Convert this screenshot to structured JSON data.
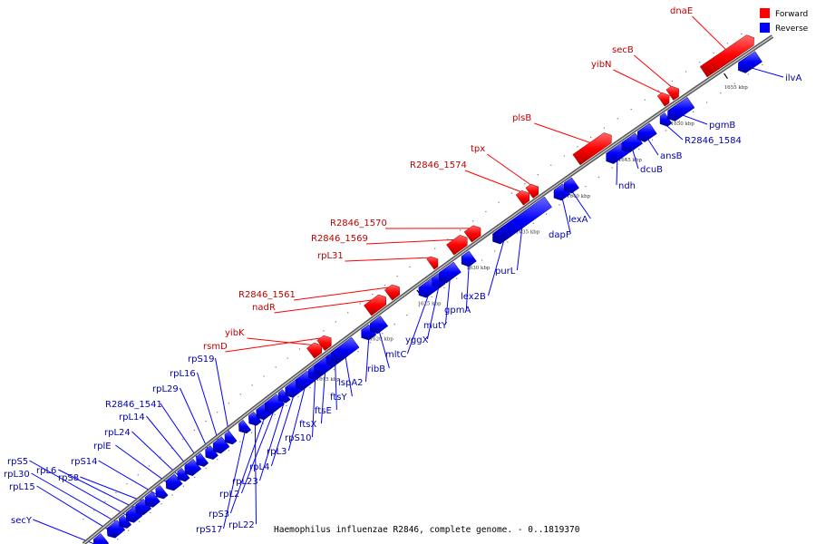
{
  "caption": "Haemophilus influenzae R2846, complete genome. - 0..1819370",
  "legend": {
    "forward": "Forward",
    "reverse": "Reverse"
  },
  "colors": {
    "forward": "#ff0000",
    "reverse": "#0000ff",
    "backbone": "#6b6b6b",
    "label_forward": "#c00000",
    "label_reverse": "#0000b0"
  },
  "ticks": [
    "1615 kbp",
    "1620 kbp",
    "1625 kbp",
    "1630 kbp",
    "1635 kbp",
    "1640 kbp",
    "1645 kbp",
    "1650 kbp",
    "1655 kbp"
  ],
  "forward_genes": [
    "yibK",
    "rsmD",
    "nadR",
    "R2846_1561",
    "rpL31",
    "R2846_1569",
    "R2846_1570",
    "R2846_1574",
    "tpx",
    "plsB",
    "yibN",
    "secB",
    "dnaE"
  ],
  "reverse_genes": [
    "secY",
    "rpL15",
    "rpL30",
    "rpS5",
    "rpL6",
    "rpS8",
    "rpS14",
    "rplE",
    "rpL24",
    "rpL14",
    "R2846_1541",
    "rpL29",
    "rpL16",
    "rpS19",
    "rpS17",
    "rpL22",
    "rpS3",
    "rpL2",
    "rpL23",
    "rpL4",
    "rpL3",
    "rpS10",
    "ftsX",
    "ftsE",
    "ftsY",
    "lspA2",
    "ribB",
    "mltC",
    "yggX",
    "mutY",
    "gpmA",
    "lex2B",
    "purL",
    "dapF",
    "lexA",
    "ndh",
    "dcuB",
    "ansB",
    "R2846_1584",
    "pgmB",
    "ilvA"
  ]
}
